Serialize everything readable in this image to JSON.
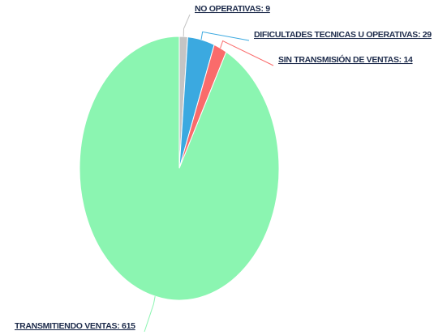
{
  "chart_data": {
    "type": "pie",
    "categories": [
      "NO OPERATIVAS: 9",
      "DIFICULTADES TECNICAS U OPERATIVAS: 29",
      "SIN TRANSMISIÓN DE VENTAS: 14",
      "TRANSMITIENDO VENTAS: 615"
    ],
    "values": [
      9,
      29,
      14,
      615
    ],
    "colors": [
      "#c4c4c4",
      "#3ba9e0",
      "#fa6b6b",
      "#8bf5b1"
    ]
  }
}
